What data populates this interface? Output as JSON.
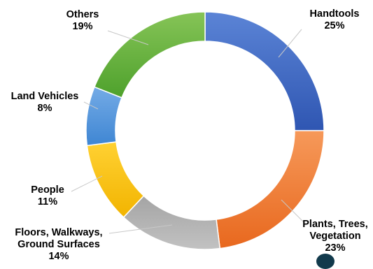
{
  "chart_data": {
    "type": "pie",
    "donut": true,
    "title": "",
    "slices": [
      {
        "label": [
          "Handtools"
        ],
        "value": 25,
        "value_label": "25%",
        "color_top": "#5b84d6",
        "color_bottom": "#2f56b2"
      },
      {
        "label": [
          "Plants, Trees,",
          "Vegetation"
        ],
        "value": 23,
        "value_label": "23%",
        "color_top": "#f6995a",
        "color_bottom": "#e8681e"
      },
      {
        "label": [
          "Floors, Walkways,",
          "Ground Surfaces"
        ],
        "value": 14,
        "value_label": "14%",
        "color_top": "#a4a4a4",
        "color_bottom": "#c2c2c2"
      },
      {
        "label": [
          "People"
        ],
        "value": 11,
        "value_label": "11%",
        "color_top": "#ffd133",
        "color_bottom": "#f2b400"
      },
      {
        "label": [
          "Land Vehicles"
        ],
        "value": 8,
        "value_label": "8%",
        "color_top": "#74abe6",
        "color_bottom": "#3f86d3"
      },
      {
        "label": [
          "Others"
        ],
        "value": 19,
        "value_label": "19%",
        "color_top": "#86c457",
        "color_bottom": "#4ea12c"
      }
    ]
  }
}
